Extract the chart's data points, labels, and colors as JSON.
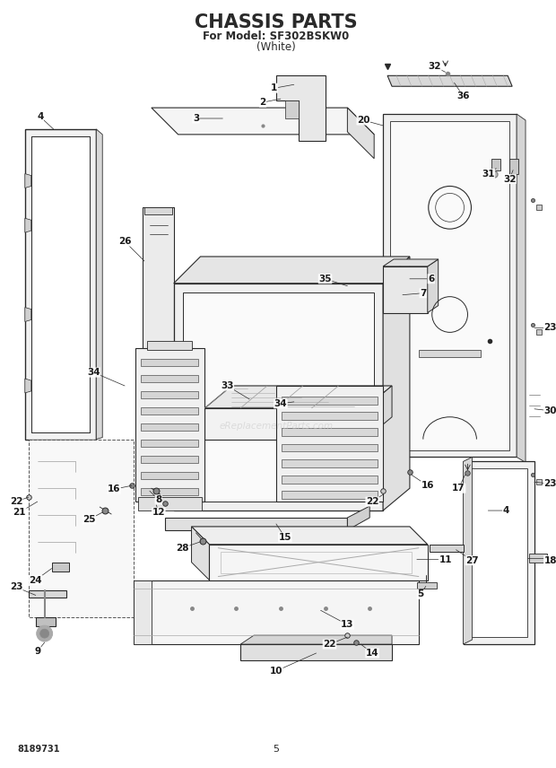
{
  "title": "CHASSIS PARTS",
  "subtitle": "For Model: SF302BSKW0",
  "subtitle2": "(White)",
  "model_number": "8189731",
  "page_number": "5",
  "watermark": "eReplacementParts.com",
  "bg_color": "#ffffff",
  "line_color": "#2a2a2a",
  "label_color": "#1a1a1a",
  "title_fontsize": 15,
  "subtitle_fontsize": 8.5,
  "label_fontsize": 7.5,
  "footer_fontsize": 7
}
